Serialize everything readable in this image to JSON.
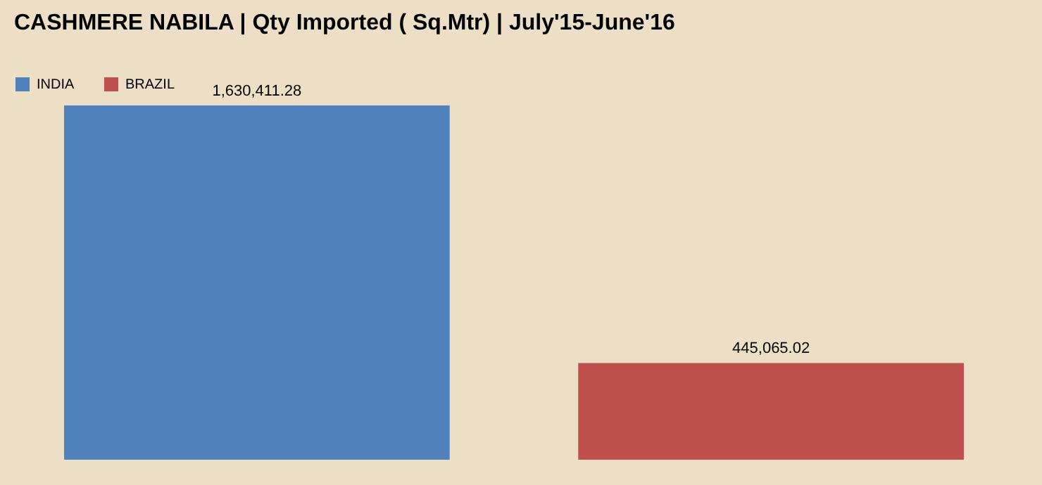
{
  "chart_data": {
    "type": "bar",
    "title": "CASHMERE NABILA  | Qty Imported ( Sq.Mtr) | July'15-June'16",
    "categories": [
      null
    ],
    "legend": "top",
    "series": [
      {
        "name": "INDIA",
        "color": "#4f81bd",
        "values": [
          1630411.28
        ],
        "value_labels": [
          "1,630,411.28"
        ]
      },
      {
        "name": "BRAZIL",
        "color": "#c0504d",
        "values": [
          445065.02
        ],
        "value_labels": [
          "445,065.02"
        ]
      }
    ]
  }
}
